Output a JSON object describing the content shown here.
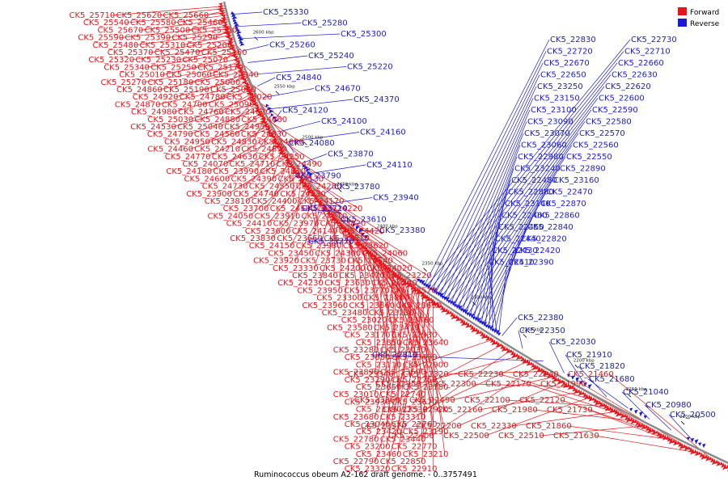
{
  "legend": {
    "forward_label": "Forward",
    "reverse_label": "Reverse",
    "forward_color": "#e8141a",
    "reverse_color": "#1a1ad6"
  },
  "caption": "Ruminococcus obeum A2-162 draft genome. - 0..3757491",
  "ruler_ticks": [
    "2600 kbp",
    "2550 kbp",
    "2500 kbp",
    "2450 kbp",
    "2400 kbp",
    "2350 kbp",
    "2300 kbp",
    "2250 kbp",
    "2200 kbp",
    "2150 kbp",
    "2100 kbp"
  ],
  "forward_labels": [
    "CK5_25710",
    "CK5_25620",
    "CK5_25660",
    "CK5_25540",
    "CK5_25580",
    "CK5_25460",
    "CK5_25670",
    "CK5_25500",
    "CK5_25350",
    "CK5_25590",
    "CK5_25390",
    "CK5_25290",
    "CK5_25480",
    "CK5_25310",
    "CK5_25200",
    "CK5_25370",
    "CK5_25470",
    "CK5_25160",
    "CK5_25320",
    "CK5_25230",
    "CK5_25070",
    "CK5_25340",
    "CK5_25250",
    "CK5_25170",
    "CK5_25010",
    "CK5_25060",
    "CK5_24940",
    "CK5_25270",
    "CK5_25180",
    "CK5_25000",
    "CK5_24860",
    "CK5_25190",
    "CK5_25080",
    "CK5_24920",
    "CK5_24780",
    "CK5_25020",
    "CK5_24870",
    "CK5_24700",
    "CK5_25090",
    "CK5_24980",
    "CK5_24760",
    "CK5_24620",
    "CK5_25030",
    "CK5_24880",
    "CK5_24660",
    "CK5_24530",
    "CK5_25040",
    "CK5_24930",
    "CK5_24790",
    "CK5_24560",
    "CK5_24330",
    "CK5_24950",
    "CK5_24830",
    "CK5_24680",
    "CK5_24460",
    "CK5_24210",
    "CK5_24890",
    "CK5_24770",
    "CK5_24630",
    "CK5_24250",
    "CK5_24070",
    "CK5_24710",
    "CK5_24490",
    "CK5_24180",
    "CK5_23990",
    "CK5_24810",
    "CK5_24600",
    "CK5_24390",
    "CK5_24130",
    "CK5_24730",
    "CK5_24550",
    "CK5_24280",
    "CK5_23900",
    "CK5_24740",
    "CK5_24030",
    "CK5_23810",
    "CK5_24400",
    "CK5_24170",
    "CK5_23700",
    "CK5_24580",
    "CK5_24220",
    "CK5_24050",
    "CK5_23910",
    "CK5_24610",
    "CK5_24410",
    "CK5_23970",
    "CK5_23820",
    "CK5_23600",
    "CK5_24140",
    "CK5_24420",
    "CK5_23830",
    "CK5_23660",
    "CK5_23510",
    "CK5_24150",
    "CK5_23980",
    "CK5_23620",
    "CK5_23450",
    "CK5_24300",
    "CK5_24060",
    "CK5_23920",
    "CK5_23730",
    "CK5_23540",
    "CK5_23330",
    "CK5_24200",
    "CK5_24020",
    "CK5_23840",
    "CK5_23470",
    "CK5_23220",
    "CK5_24230",
    "CK5_23630",
    "CK5_24240",
    "CK5_23950",
    "CK5_23770",
    "CK5_23570",
    "CK5_23300",
    "CK5_23080",
    "CK5_23960",
    "CK5_23860",
    "CK5_23690",
    "CK5_23480",
    "CK5_23230",
    "CK5_23020",
    "CK5_23760",
    "CK5_23580",
    "CK5_23410",
    "CK5_23170",
    "CK5_22930",
    "CK5_23850",
    "CK5_23640",
    "CK5_23280",
    "CK5_23030",
    "CK5_23880",
    "CK5_23490",
    "CK5_23110",
    "CK5_22900",
    "CK5_23890",
    "CK5_23590",
    "CK5_23290",
    "CK5_22750",
    "CK5_23650",
    "CK5_23180",
    "CK5_23010",
    "CK5_22740",
    "CK5_23930",
    "CK5_23670",
    "CK5_23390",
    "CK5_22920",
    "CK5_23680",
    "CK5_23310",
    "CK5_23040",
    "CK5_22760",
    "CK5_23420",
    "CK5_23190",
    "CK5_22780",
    "CK5_23440",
    "CK5_23200",
    "CK5_22770",
    "CK5_23460",
    "CK5_23210",
    "CK5_22790",
    "CK5_22850",
    "CK5_23320",
    "CK5_22910",
    "CK5_23340",
    "CK5_23360",
    "CK5_23370",
    "CK5_22950",
    "CK5_22530",
    "CK5_22400",
    "CK5_22320",
    "CK5_22490",
    "CK5_22200",
    "CK5_22300",
    "CK5_22160",
    "CK5_22500",
    "CK5_22230",
    "CK5_22100",
    "CK5_22330",
    "CK5_22170",
    "CK5_21980",
    "CK5_22510",
    "CK5_22240",
    "CK5_22120",
    "CK5_21860",
    "CK5_21990",
    "CK5_21730",
    "CK5_21630",
    "CK5_21460"
  ],
  "reverse_labels": [
    "CK5_25330",
    "CK5_25280",
    "CK5_25300",
    "CK5_25260",
    "CK5_25240",
    "CK5_25220",
    "CK5_24840",
    "CK5_24670",
    "CK5_24370",
    "CK5_24120",
    "CK5_24100",
    "CK5_24160",
    "CK5_24080",
    "CK5_23870",
    "CK5_24110",
    "CK5_23790",
    "CK5_23780",
    "CK5_23940",
    "CK5_23710",
    "CK5_23610",
    "CK5_23380",
    "CK5_23270",
    "CK5_22830",
    "CK5_22730",
    "CK5_22720",
    "CK5_22710",
    "CK5_22670",
    "CK5_22660",
    "CK5_22650",
    "CK5_22630",
    "CK5_23250",
    "CK5_22620",
    "CK5_23150",
    "CK5_22600",
    "CK5_23100",
    "CK5_22590",
    "CK5_23090",
    "CK5_22580",
    "CK5_23070",
    "CK5_22570",
    "CK5_23060",
    "CK5_22560",
    "CK5_22980",
    "CK5_22550",
    "CK5_23240",
    "CK5_22890",
    "CK5_22480",
    "CK5_23160",
    "CK5_22880",
    "CK5_22470",
    "CK5_23140",
    "CK5_22870",
    "CK5_22460",
    "CK5_22860",
    "CK5_22450",
    "CK5_22840",
    "CK5_22440",
    "CK5_22820",
    "CK5_22430",
    "CK5_22420",
    "CK5_22410",
    "CK5_22390",
    "CK5_22380",
    "CK5_22350",
    "CK5_22810",
    "CK5_22030",
    "CK5_21910",
    "CK5_21820",
    "CK5_21680",
    "CK5_21040",
    "CK5_20980",
    "CK5_20500"
  ]
}
